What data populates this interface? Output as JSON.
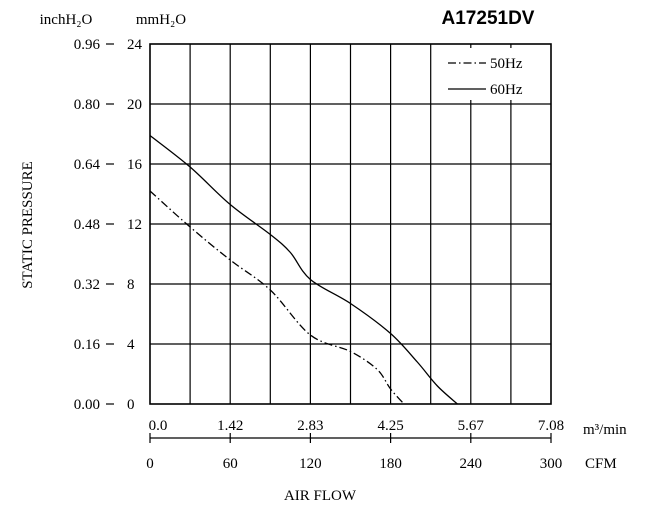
{
  "chart_data": {
    "type": "line",
    "title": "A17251DV",
    "xlabel": "AIR FLOW",
    "ylabel": "STATIC PRESSURE",
    "y_left_unit": "inchH₂O",
    "y_mm_unit": "mmH₂O",
    "x_top_unit": "m³/min",
    "x_bottom_unit": "CFM",
    "y_inch_ticks": [
      "0.00",
      "0.16",
      "0.32",
      "0.48",
      "0.64",
      "0.80",
      "0.96"
    ],
    "y_mm_ticks": [
      "0",
      "4",
      "8",
      "12",
      "16",
      "20",
      "24"
    ],
    "x_m3_ticks": [
      "0.0",
      "1.42",
      "2.83",
      "4.25",
      "5.67",
      "7.08"
    ],
    "x_cfm_ticks": [
      "0",
      "60",
      "120",
      "180",
      "240",
      "300"
    ],
    "xlim": [
      0,
      300
    ],
    "ylim": [
      0,
      24
    ],
    "grid": true,
    "legend_position": "top-right",
    "series": [
      {
        "name": "50Hz",
        "style": "dash-dot",
        "x": [
          0,
          30,
          60,
          90,
          120,
          150,
          170,
          180,
          190
        ],
        "y": [
          14.2,
          11.8,
          9.6,
          7.6,
          4.6,
          3.5,
          2.3,
          1.0,
          0
        ]
      },
      {
        "name": "60Hz",
        "style": "solid",
        "x": [
          0,
          30,
          60,
          90,
          105,
          120,
          150,
          180,
          200,
          215,
          230
        ],
        "y": [
          17.9,
          15.8,
          13.3,
          11.3,
          10.1,
          8.3,
          6.7,
          4.7,
          2.8,
          1.2,
          0
        ]
      }
    ]
  }
}
